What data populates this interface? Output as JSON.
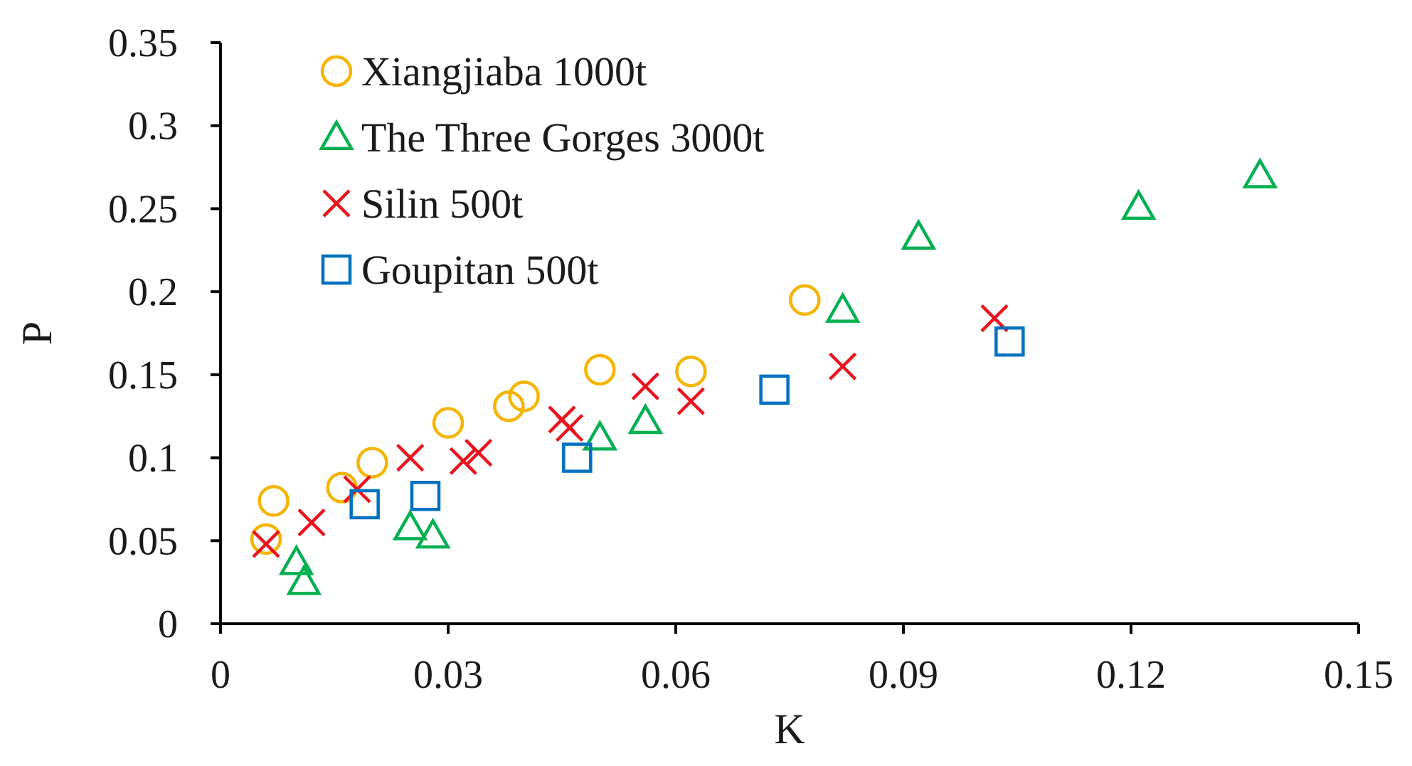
{
  "chart_data": {
    "type": "scatter",
    "xlabel": "K",
    "ylabel": "P",
    "xlim": [
      0,
      0.15
    ],
    "ylim": [
      0,
      0.35
    ],
    "x_ticks": [
      "0",
      "0.03",
      "0.06",
      "0.09",
      "0.12",
      "0.15"
    ],
    "y_ticks": [
      "0",
      "0.05",
      "0.1",
      "0.15",
      "0.2",
      "0.25",
      "0.3",
      "0.35"
    ],
    "grid": false,
    "legend_position": "top-left",
    "series": [
      {
        "name": "Xiangjiaba 1000t",
        "marker": "circle",
        "color": "#F5B400",
        "points": [
          [
            0.006,
            0.051
          ],
          [
            0.007,
            0.074
          ],
          [
            0.016,
            0.082
          ],
          [
            0.02,
            0.097
          ],
          [
            0.03,
            0.121
          ],
          [
            0.038,
            0.131
          ],
          [
            0.04,
            0.137
          ],
          [
            0.05,
            0.153
          ],
          [
            0.062,
            0.152
          ],
          [
            0.077,
            0.195
          ]
        ]
      },
      {
        "name": "The Three Gorges 3000t",
        "marker": "triangle",
        "color": "#00B050",
        "points": [
          [
            0.01,
            0.037
          ],
          [
            0.011,
            0.025
          ],
          [
            0.025,
            0.058
          ],
          [
            0.028,
            0.053
          ],
          [
            0.05,
            0.112
          ],
          [
            0.056,
            0.122
          ],
          [
            0.082,
            0.189
          ],
          [
            0.092,
            0.233
          ],
          [
            0.121,
            0.251
          ],
          [
            0.137,
            0.27
          ]
        ]
      },
      {
        "name": "Silin 500t",
        "marker": "x",
        "color": "#E8141E",
        "points": [
          [
            0.006,
            0.048
          ],
          [
            0.012,
            0.061
          ],
          [
            0.018,
            0.081
          ],
          [
            0.025,
            0.1
          ],
          [
            0.032,
            0.098
          ],
          [
            0.034,
            0.103
          ],
          [
            0.045,
            0.123
          ],
          [
            0.046,
            0.118
          ],
          [
            0.056,
            0.143
          ],
          [
            0.062,
            0.134
          ],
          [
            0.082,
            0.155
          ],
          [
            0.102,
            0.184
          ]
        ]
      },
      {
        "name": "Goupitan 500t",
        "marker": "square",
        "color": "#0070C0",
        "points": [
          [
            0.019,
            0.072
          ],
          [
            0.027,
            0.077
          ],
          [
            0.047,
            0.1
          ],
          [
            0.073,
            0.141
          ],
          [
            0.104,
            0.17
          ]
        ]
      }
    ]
  }
}
